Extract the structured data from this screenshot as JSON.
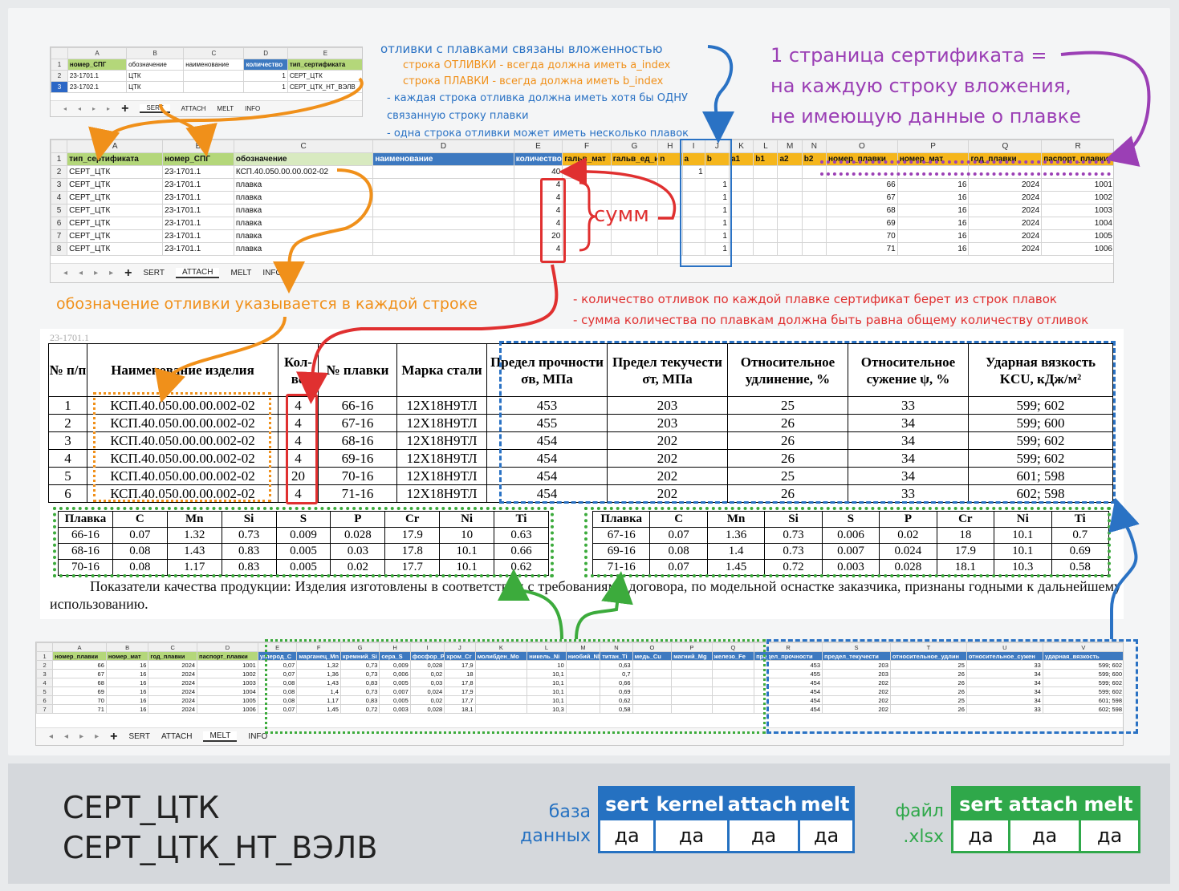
{
  "colors": {
    "orange": "#f0901a",
    "blue": "#2a72c4",
    "purple": "#9b3fb5",
    "red": "#e03030",
    "green": "#3cab3c"
  },
  "sheet1": {
    "col_letters": [
      "A",
      "B",
      "C",
      "D",
      "E"
    ],
    "row_nums": [
      "1",
      "2",
      "3"
    ],
    "headers": [
      "номер_СПГ",
      "обозначение",
      "наименование",
      "количество",
      "тип_сертификата"
    ],
    "rows": [
      [
        "23-1701.1",
        "ЦТК",
        "",
        "1",
        "СЕРТ_ЦТК"
      ],
      [
        "23-1702.1",
        "ЦТК",
        "",
        "1",
        "СЕРТ_ЦТК_НТ_ВЭЛВ"
      ]
    ],
    "tabs": [
      "SERT",
      "ATTACH",
      "MELT",
      "INFO"
    ]
  },
  "sheet2": {
    "col_letters": [
      "A",
      "B",
      "C",
      "D",
      "E",
      "F",
      "G",
      "H",
      "I",
      "J",
      "K",
      "L",
      "M",
      "N",
      "O",
      "P",
      "Q",
      "R"
    ],
    "row_nums": [
      "1",
      "2",
      "3",
      "4",
      "5",
      "6",
      "7",
      "8"
    ],
    "headers": [
      "тип_сертификата",
      "номер_СПГ",
      "обозначение",
      "наименование",
      "количество",
      "гальв_мат",
      "гальв_ед_и",
      "n",
      "a",
      "b",
      "a1",
      "b1",
      "a2",
      "b2",
      "номер_плавки",
      "номер_мат",
      "год_плавки",
      "паспорт_плавки"
    ],
    "row2": [
      "СЕРТ_ЦТК",
      "23-1701.1",
      "КСП.40.050.00.00.002-02",
      "",
      "40",
      "",
      "",
      "",
      "1",
      "",
      "",
      "",
      "",
      "",
      "",
      "",
      "",
      ""
    ],
    "rows": [
      [
        "СЕРТ_ЦТК",
        "23-1701.1",
        "плавка",
        "",
        "4",
        "",
        "",
        "",
        "",
        "1",
        "",
        "",
        "",
        "",
        "66",
        "16",
        "2024",
        "1001"
      ],
      [
        "СЕРТ_ЦТК",
        "23-1701.1",
        "плавка",
        "",
        "4",
        "",
        "",
        "",
        "",
        "1",
        "",
        "",
        "",
        "",
        "67",
        "16",
        "2024",
        "1002"
      ],
      [
        "СЕРТ_ЦТК",
        "23-1701.1",
        "плавка",
        "",
        "4",
        "",
        "",
        "",
        "",
        "1",
        "",
        "",
        "",
        "",
        "68",
        "16",
        "2024",
        "1003"
      ],
      [
        "СЕРТ_ЦТК",
        "23-1701.1",
        "плавка",
        "",
        "4",
        "",
        "",
        "",
        "",
        "1",
        "",
        "",
        "",
        "",
        "69",
        "16",
        "2024",
        "1004"
      ],
      [
        "СЕРТ_ЦТК",
        "23-1701.1",
        "плавка",
        "",
        "20",
        "",
        "",
        "",
        "",
        "1",
        "",
        "",
        "",
        "",
        "70",
        "16",
        "2024",
        "1005"
      ],
      [
        "СЕРТ_ЦТК",
        "23-1701.1",
        "плавка",
        "",
        "4",
        "",
        "",
        "",
        "",
        "1",
        "",
        "",
        "",
        "",
        "71",
        "16",
        "2024",
        "1006"
      ]
    ],
    "tabs": [
      "SERT",
      "ATTACH",
      "MELT",
      "INFO"
    ]
  },
  "notes": {
    "nesting_title": "отливки с плавками связаны вложенностью",
    "nesting_l1": "строка ОТЛИВКИ - всегда должна иметь a_index",
    "nesting_l2": "строка ПЛАВКИ - всегда должна иметь b_index",
    "nesting_l3": "- каждая строка отливка должна иметь хотя бы ОДНУ",
    "nesting_l4": "связанную строку плавки",
    "nesting_l5": "- одна строка отливки может иметь несколько плавок",
    "page_l1": "1 страница сертификата =",
    "page_l2": "на каждую строку вложения,",
    "page_l3": "не имеющую данные о плавке",
    "summ": "сумм",
    "designation": "обозначение отливки указывается в каждой строке",
    "qty_l1": "- количество отливок по каждой плавке сертификат берет из строк плавок",
    "qty_l2": "- сумма количества по плавкам должна быть равна общему количеству отливок"
  },
  "doc": {
    "doc_number": "23-1701.1",
    "quality_headers": [
      "№ п/п",
      "Наименование изделия",
      "Кол-во",
      "№ плавки",
      "Марка стали",
      "Предел прочности σв, МПа",
      "Предел текучести σт, МПа",
      "Относительное удлинение, %",
      "Относительное сужение ψ, %",
      "Ударная вязкость KCU, кДж/м²"
    ],
    "quality_rows": [
      [
        "1",
        "КСП.40.050.00.00.002-02",
        "4",
        "66-16",
        "12Х18Н9ТЛ",
        "453",
        "203",
        "25",
        "33",
        "599; 602"
      ],
      [
        "2",
        "КСП.40.050.00.00.002-02",
        "4",
        "67-16",
        "12Х18Н9ТЛ",
        "455",
        "203",
        "26",
        "34",
        "599; 600"
      ],
      [
        "3",
        "КСП.40.050.00.00.002-02",
        "4",
        "68-16",
        "12Х18Н9ТЛ",
        "454",
        "202",
        "26",
        "34",
        "599; 602"
      ],
      [
        "4",
        "КСП.40.050.00.00.002-02",
        "4",
        "69-16",
        "12Х18Н9ТЛ",
        "454",
        "202",
        "26",
        "34",
        "599; 602"
      ],
      [
        "5",
        "КСП.40.050.00.00.002-02",
        "20",
        "70-16",
        "12Х18Н9ТЛ",
        "454",
        "202",
        "25",
        "34",
        "601; 598"
      ],
      [
        "6",
        "КСП.40.050.00.00.002-02",
        "4",
        "71-16",
        "12Х18Н9ТЛ",
        "454",
        "202",
        "26",
        "33",
        "602; 598"
      ]
    ],
    "chem_headers": [
      "Плавка",
      "C",
      "Mn",
      "Si",
      "S",
      "P",
      "Cr",
      "Ni",
      "Ti"
    ],
    "chem_left": [
      [
        "66-16",
        "0.07",
        "1.32",
        "0.73",
        "0.009",
        "0.028",
        "17.9",
        "10",
        "0.63"
      ],
      [
        "68-16",
        "0.08",
        "1.43",
        "0.83",
        "0.005",
        "0.03",
        "17.8",
        "10.1",
        "0.66"
      ],
      [
        "70-16",
        "0.08",
        "1.17",
        "0.83",
        "0.005",
        "0.02",
        "17.7",
        "10.1",
        "0.62"
      ]
    ],
    "chem_right": [
      [
        "67-16",
        "0.07",
        "1.36",
        "0.73",
        "0.006",
        "0.02",
        "18",
        "10.1",
        "0.7"
      ],
      [
        "69-16",
        "0.08",
        "1.4",
        "0.73",
        "0.007",
        "0.024",
        "17.9",
        "10.1",
        "0.69"
      ],
      [
        "71-16",
        "0.07",
        "1.45",
        "0.72",
        "0.003",
        "0.028",
        "18.1",
        "10.3",
        "0.58"
      ]
    ],
    "conclusion": "Показатели качества продукции: Изделия изготовлены в соответствии с требованиями договора, по модельной оснастке заказчика, признаны годными к дальнейшему использованию."
  },
  "sheet3": {
    "col_letters": [
      "A",
      "B",
      "C",
      "D",
      "E",
      "F",
      "G",
      "H",
      "I",
      "J",
      "K",
      "L",
      "M",
      "N",
      "O",
      "P",
      "Q",
      "R",
      "S",
      "T",
      "U",
      "V"
    ],
    "row_nums": [
      "1",
      "2",
      "3",
      "4",
      "5",
      "6",
      "7"
    ],
    "headers": [
      "номер_плавки",
      "номер_мат",
      "год_плавки",
      "паспорт_плавки",
      "углерод_C",
      "марганец_Mn",
      "кремний_Si",
      "сера_S",
      "фосфор_P",
      "хром_Cr",
      "молибден_Mo",
      "никель_Ni",
      "ниобий_Nb",
      "титан_Ti",
      "медь_Cu",
      "магний_Mg",
      "железо_Fe",
      "предел_прочности",
      "предел_текучести",
      "относительное_удлин",
      "относительное_сужен",
      "ударная_вязкость"
    ],
    "rows": [
      [
        "66",
        "16",
        "2024",
        "1001",
        "0,07",
        "1,32",
        "0,73",
        "0,009",
        "0,028",
        "17,9",
        "",
        "10",
        "",
        "0,63",
        "",
        "",
        "",
        "453",
        "203",
        "25",
        "33",
        "599; 602"
      ],
      [
        "67",
        "16",
        "2024",
        "1002",
        "0,07",
        "1,36",
        "0,73",
        "0,006",
        "0,02",
        "18",
        "",
        "10,1",
        "",
        "0,7",
        "",
        "",
        "",
        "455",
        "203",
        "26",
        "34",
        "599; 600"
      ],
      [
        "68",
        "16",
        "2024",
        "1003",
        "0,08",
        "1,43",
        "0,83",
        "0,005",
        "0,03",
        "17,8",
        "",
        "10,1",
        "",
        "0,66",
        "",
        "",
        "",
        "454",
        "202",
        "26",
        "34",
        "599; 602"
      ],
      [
        "69",
        "16",
        "2024",
        "1004",
        "0,08",
        "1,4",
        "0,73",
        "0,007",
        "0,024",
        "17,9",
        "",
        "10,1",
        "",
        "0,69",
        "",
        "",
        "",
        "454",
        "202",
        "26",
        "34",
        "599; 602"
      ],
      [
        "70",
        "16",
        "2024",
        "1005",
        "0,08",
        "1,17",
        "0,83",
        "0,005",
        "0,02",
        "17,7",
        "",
        "10,1",
        "",
        "0,62",
        "",
        "",
        "",
        "454",
        "202",
        "25",
        "34",
        "601; 598"
      ],
      [
        "71",
        "16",
        "2024",
        "1006",
        "0,07",
        "1,45",
        "0,72",
        "0,003",
        "0,028",
        "18,1",
        "",
        "10,3",
        "",
        "0,58",
        "",
        "",
        "",
        "454",
        "202",
        "26",
        "33",
        "602; 598"
      ]
    ],
    "tabs": [
      "SERT",
      "ATTACH",
      "MELT",
      "INFO"
    ]
  },
  "footer": {
    "cert_types": [
      "СЕРТ_ЦТК",
      "СЕРТ_ЦТК_НТ_ВЭЛВ"
    ],
    "db_label_1": "база",
    "db_label_2": "данных",
    "db_cols": [
      "sert",
      "kernel",
      "attach",
      "melt"
    ],
    "db_vals": [
      "да",
      "да",
      "да",
      "да"
    ],
    "file_label_1": "файл",
    "file_label_2": ".xlsx",
    "file_cols": [
      "sert",
      "attach",
      "melt"
    ],
    "file_vals": [
      "да",
      "да",
      "да"
    ]
  }
}
